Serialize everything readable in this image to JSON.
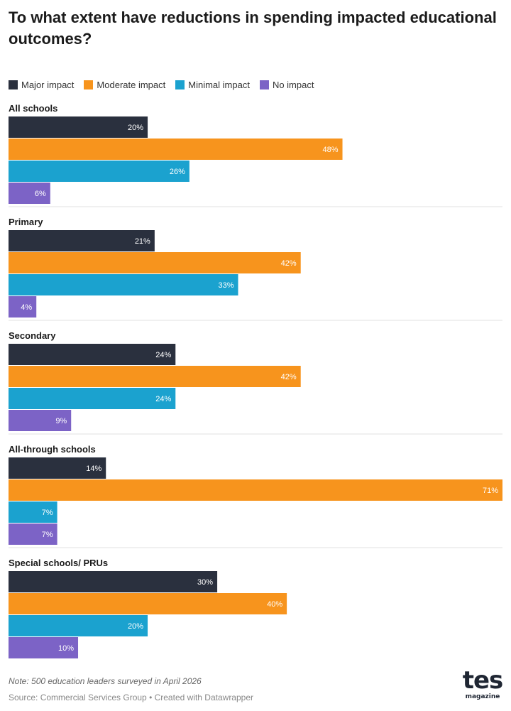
{
  "chart_data": {
    "type": "bar",
    "orientation": "horizontal",
    "title": "To what extent have reductions in spending impacted educational outcomes?",
    "legend": [
      {
        "name": "Major impact",
        "color": "#2a303e"
      },
      {
        "name": "Moderate impact",
        "color": "#f7941d"
      },
      {
        "name": "Minimal impact",
        "color": "#1ba2cf"
      },
      {
        "name": "No impact",
        "color": "#7c63c6"
      }
    ],
    "value_suffix": "%",
    "xlim": [
      0,
      71
    ],
    "groups": [
      {
        "label": "All schools",
        "values": [
          20,
          48,
          26,
          6
        ],
        "labels": [
          "20%",
          "48%",
          "26%",
          "6%"
        ]
      },
      {
        "label": "Primary",
        "values": [
          21,
          42,
          33,
          4
        ],
        "labels": [
          "21%",
          "42%",
          "33%",
          "4%"
        ]
      },
      {
        "label": "Secondary",
        "values": [
          24,
          42,
          24,
          9
        ],
        "labels": [
          "24%",
          "42%",
          "24%",
          "9%"
        ]
      },
      {
        "label": "All-through schools",
        "values": [
          14,
          71,
          7,
          7
        ],
        "labels": [
          "14%",
          "71%",
          "7%",
          "7%"
        ]
      },
      {
        "label": "Special schools/ PRUs",
        "values": [
          30,
          40,
          20,
          10
        ],
        "labels": [
          "30%",
          "40%",
          "20%",
          "10%"
        ]
      }
    ]
  },
  "footer": {
    "note": "Note: 500 education leaders surveyed in April 2026",
    "source": "Source: Commercial Services Group • Created with Datawrapper"
  },
  "logo": {
    "main": "tes",
    "sub": "magazine"
  }
}
